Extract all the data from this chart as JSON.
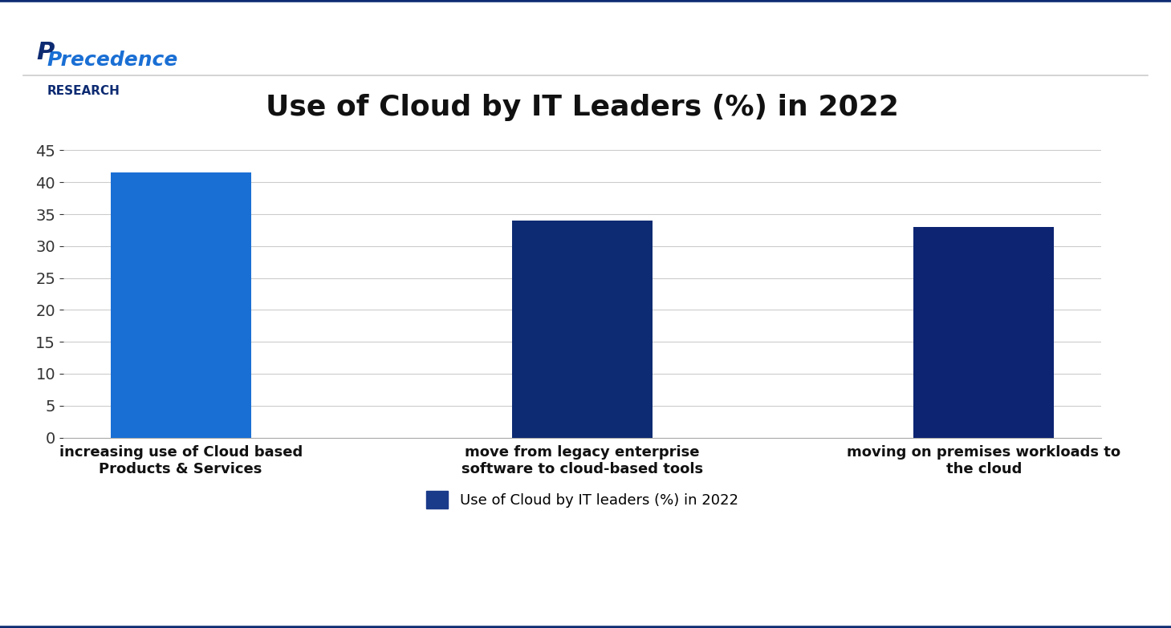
{
  "title": "Use of Cloud by IT Leaders (%) in 2022",
  "categories": [
    "increasing use of Cloud based\nProducts & Services",
    "move from legacy enterprise\nsoftware to cloud-based tools",
    "moving on premises workloads to\nthe cloud"
  ],
  "values": [
    41.5,
    34.0,
    33.0
  ],
  "bar_colors": [
    "#1a6fd4",
    "#0d2b72",
    "#0d2472"
  ],
  "ylim": [
    0,
    47
  ],
  "yticks": [
    0,
    5,
    10,
    15,
    20,
    25,
    30,
    35,
    40,
    45
  ],
  "legend_label": "Use of Cloud by IT leaders (%) in 2022",
  "legend_color": "#1a3a8a",
  "background_color": "#ffffff",
  "grid_color": "#cccccc",
  "title_fontsize": 26,
  "tick_fontsize": 14,
  "label_fontsize": 13,
  "logo_text_precedence": "Precedence",
  "logo_text_research": "RESEARCH",
  "border_color": "#0d2b72"
}
